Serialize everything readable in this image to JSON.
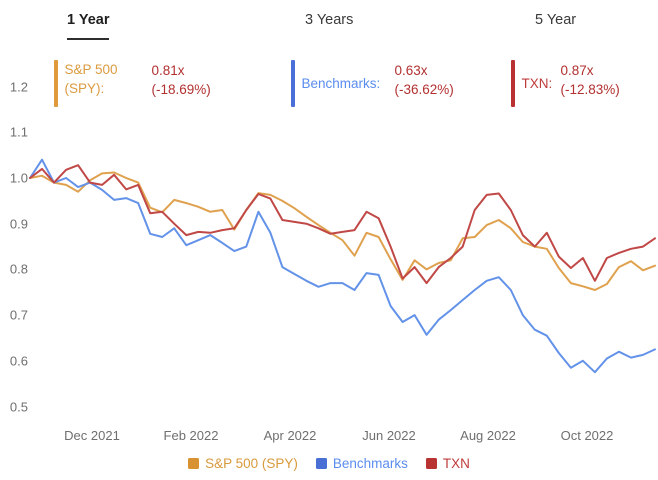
{
  "tabs": [
    {
      "label": "1 Year",
      "active": true
    },
    {
      "label": "3 Years",
      "active": false
    },
    {
      "label": "5 Year",
      "active": false
    }
  ],
  "stats": [
    {
      "label": "S&P 500 (SPY):",
      "value": "0.81x",
      "change": "(-18.69%)",
      "bar_color": "#E09A3C",
      "label_color": "#DB9B40"
    },
    {
      "label": "Benchmarks:",
      "value": "0.63x",
      "change": "(-36.62%)",
      "bar_color": "#4A6FD8",
      "label_color": "#5B8DEF"
    },
    {
      "label": "TXN:",
      "value": "0.87x",
      "change": "(-12.83%)",
      "bar_color": "#B93232",
      "label_color": "#BF3B3B"
    }
  ],
  "value_text_color": "#B23030",
  "legend": [
    {
      "label": "S&P 500 (SPY)",
      "swatch_color": "#D89232",
      "text_color": "#D89A3C"
    },
    {
      "label": "Benchmarks",
      "swatch_color": "#4A6FD4",
      "text_color": "#5B8DEF"
    },
    {
      "label": "TXN",
      "swatch_color": "#B93232",
      "text_color": "#C03B3B"
    }
  ],
  "chart_data": {
    "type": "line",
    "title": "",
    "xlabel": "",
    "ylabel": "",
    "grid": false,
    "x_unit": "weekly samples, Nov 2021 - Nov 2022",
    "x_tick_labels": [
      "Dec 2021",
      "Feb 2022",
      "Apr 2022",
      "Jun 2022",
      "Aug 2022",
      "Oct 2022"
    ],
    "y_ticks": [
      1.2,
      1.1,
      1.0,
      0.9,
      0.8,
      0.7,
      0.6,
      0.5
    ],
    "ylim": [
      0.45,
      1.25
    ],
    "legend_position": "bottom",
    "series": [
      {
        "name": "S&P 500 (SPY)",
        "color": "#E0A14E",
        "final_ratio": "0.81x",
        "final_change": "-18.69%",
        "values": [
          1.0,
          1.005,
          0.99,
          0.985,
          0.97,
          0.995,
          1.01,
          1.012,
          1.0,
          0.99,
          0.935,
          0.925,
          0.952,
          0.945,
          0.937,
          0.926,
          0.93,
          0.887,
          0.93,
          0.967,
          0.963,
          0.95,
          0.934,
          0.915,
          0.897,
          0.88,
          0.864,
          0.83,
          0.88,
          0.871,
          0.822,
          0.777,
          0.82,
          0.8,
          0.814,
          0.82,
          0.868,
          0.871,
          0.897,
          0.908,
          0.89,
          0.86,
          0.85,
          0.845,
          0.803,
          0.77,
          0.763,
          0.755,
          0.768,
          0.805,
          0.818,
          0.798,
          0.808
        ]
      },
      {
        "name": "Benchmarks",
        "color": "#6392E9",
        "final_ratio": "0.63x",
        "final_change": "-36.62%",
        "values": [
          1.0,
          1.04,
          0.99,
          1.0,
          0.98,
          0.99,
          0.974,
          0.952,
          0.956,
          0.945,
          0.878,
          0.871,
          0.89,
          0.853,
          0.864,
          0.875,
          0.858,
          0.84,
          0.85,
          0.926,
          0.88,
          0.805,
          0.79,
          0.775,
          0.762,
          0.77,
          0.77,
          0.755,
          0.792,
          0.788,
          0.72,
          0.685,
          0.7,
          0.657,
          0.69,
          0.711,
          0.733,
          0.755,
          0.775,
          0.783,
          0.755,
          0.7,
          0.668,
          0.655,
          0.617,
          0.585,
          0.6,
          0.575,
          0.605,
          0.62,
          0.607,
          0.613,
          0.625
        ]
      },
      {
        "name": "TXN",
        "color": "#C04846",
        "final_ratio": "0.87x",
        "final_change": "-12.83%",
        "values": [
          1.0,
          1.02,
          0.99,
          1.018,
          1.028,
          0.99,
          0.985,
          1.007,
          0.975,
          0.985,
          0.923,
          0.926,
          0.9,
          0.875,
          0.882,
          0.88,
          0.886,
          0.89,
          0.93,
          0.965,
          0.955,
          0.908,
          0.904,
          0.9,
          0.89,
          0.878,
          0.882,
          0.886,
          0.926,
          0.912,
          0.85,
          0.78,
          0.805,
          0.77,
          0.805,
          0.825,
          0.85,
          0.93,
          0.963,
          0.966,
          0.93,
          0.875,
          0.85,
          0.88,
          0.828,
          0.803,
          0.825,
          0.775,
          0.825,
          0.836,
          0.845,
          0.85,
          0.868
        ]
      }
    ]
  }
}
